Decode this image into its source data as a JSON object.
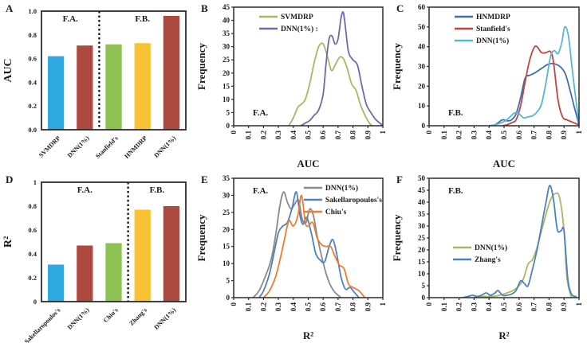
{
  "figure": {
    "background": "#ffffff",
    "frame_color": "#2b2b2b",
    "text_color": "#1a1a1a"
  },
  "chart_data": [
    {
      "panel": "A",
      "type": "bar",
      "ylabel": "AUC",
      "ylim": [
        0,
        1.0
      ],
      "yticks": [
        0,
        0.2,
        0.4,
        0.6,
        0.8,
        1.0
      ],
      "ytick_labels": [
        "0.0",
        "0.2",
        "0.4",
        "0.6",
        "0.8",
        "1.0"
      ],
      "categories": [
        "SVMDRP",
        "DNN(1%)",
        "Stanfield's",
        "HNMDRP",
        "DNN(1%)"
      ],
      "values": [
        0.62,
        0.71,
        0.72,
        0.73,
        0.96
      ],
      "bar_colors": [
        "#2ea9e1",
        "#ad4a40",
        "#8dc152",
        "#f9c233",
        "#ad4a40"
      ],
      "divider_after": 2,
      "group_labels": [
        "F.A.",
        "F.B."
      ]
    },
    {
      "panel": "B",
      "type": "line",
      "xlabel": "AUC",
      "ylabel": "Frequency",
      "xlim": [
        0,
        1
      ],
      "ylim": [
        0,
        45
      ],
      "yticks": [
        0,
        5,
        10,
        15,
        20,
        25,
        30,
        35,
        40,
        45
      ],
      "xticks": [
        0,
        0.1,
        0.2,
        0.3,
        0.4,
        0.5,
        0.6,
        0.7,
        0.8,
        0.9,
        1
      ],
      "xtick_labels": [
        "0",
        "0.1",
        "0.2",
        "0.3",
        "0.4",
        "0.5",
        "0.6",
        "0.7",
        "0.8",
        "0.9",
        "1"
      ],
      "annotation": {
        "text": "F.A.",
        "position": "bottom-left"
      },
      "legend": {
        "position": "top-left"
      },
      "series": [
        {
          "name": "SVMDRP",
          "color": "#a9b662",
          "x": [
            0.37,
            0.4,
            0.43,
            0.45,
            0.48,
            0.51,
            0.54,
            0.57,
            0.6,
            0.63,
            0.655,
            0.68,
            0.71,
            0.735,
            0.76,
            0.79,
            0.82,
            0.85,
            0.88,
            0.91,
            0.93
          ],
          "y": [
            0,
            3,
            7,
            8,
            10,
            16,
            24,
            30,
            31,
            26,
            21,
            23,
            26,
            25.5,
            22,
            16,
            13.5,
            8,
            4,
            1,
            0
          ]
        },
        {
          "name": "DNN(1%)",
          "legend_label": "DNN(1%) :",
          "color": "#6e69a9",
          "x": [
            0.45,
            0.48,
            0.51,
            0.54,
            0.57,
            0.6,
            0.62,
            0.64,
            0.66,
            0.68,
            0.7,
            0.72,
            0.735,
            0.75,
            0.77,
            0.8,
            0.83,
            0.86,
            0.89,
            0.92,
            0.95,
            0.98,
            1.0
          ],
          "y": [
            0,
            1,
            2,
            4,
            6,
            12,
            24,
            33,
            34,
            31,
            33,
            41,
            43,
            37,
            28,
            25,
            23,
            15,
            8,
            5,
            2.5,
            1,
            0
          ]
        }
      ]
    },
    {
      "panel": "C",
      "type": "line",
      "xlabel": "AUC",
      "ylabel": "Frequency",
      "xlim": [
        0,
        1
      ],
      "ylim": [
        0,
        60
      ],
      "yticks": [
        0,
        10,
        20,
        30,
        40,
        50,
        60
      ],
      "xticks": [
        0,
        0.1,
        0.2,
        0.3,
        0.4,
        0.5,
        0.6,
        0.7,
        0.8,
        0.9,
        1
      ],
      "xtick_labels": [
        "0",
        "0.1",
        "0.2",
        "0.3",
        "0.4",
        "0.5",
        "0.6",
        "0.7",
        "0.8",
        "0.9",
        "1"
      ],
      "annotation": {
        "text": "F.B.",
        "position": "bottom-left"
      },
      "legend": {
        "position": "top-left"
      },
      "series": [
        {
          "name": "HNMDRP",
          "color": "#3e6db0",
          "x": [
            0.43,
            0.46,
            0.49,
            0.52,
            0.55,
            0.58,
            0.61,
            0.64,
            0.67,
            0.7,
            0.73,
            0.76,
            0.79,
            0.82,
            0.85,
            0.88,
            0.91,
            0.94,
            0.97,
            1.0
          ],
          "y": [
            0,
            1.5,
            3,
            2.5,
            3,
            6,
            14,
            24,
            25.5,
            26.5,
            28,
            29.5,
            31,
            31.5,
            31,
            29.5,
            26,
            18,
            9,
            0.5
          ]
        },
        {
          "name": "Stanfield's",
          "color": "#c0443f",
          "x": [
            0.49,
            0.52,
            0.55,
            0.58,
            0.61,
            0.64,
            0.67,
            0.7,
            0.72,
            0.75,
            0.78,
            0.81,
            0.83,
            0.86,
            0.89,
            0.92,
            0.95,
            1.0
          ],
          "y": [
            0,
            0.5,
            1.5,
            3,
            10,
            22,
            33,
            39.5,
            40,
            37,
            37,
            37.5,
            32,
            13,
            4.5,
            3,
            2,
            0.5
          ]
        },
        {
          "name": "DNN(1%)",
          "color": "#58b5d8",
          "x": [
            0.4,
            0.44,
            0.48,
            0.51,
            0.54,
            0.57,
            0.6,
            0.63,
            0.66,
            0.69,
            0.72,
            0.75,
            0.78,
            0.81,
            0.835,
            0.86,
            0.885,
            0.905,
            0.93,
            0.96,
            1.0
          ],
          "y": [
            0,
            0.5,
            1.5,
            2.5,
            4.5,
            6.5,
            6,
            4,
            4.5,
            5,
            7,
            11,
            22,
            35,
            38,
            36.5,
            42,
            50,
            45,
            25,
            1
          ]
        }
      ]
    },
    {
      "panel": "D",
      "type": "bar",
      "ylabel": "R²",
      "ylim": [
        0,
        1.0
      ],
      "yticks": [
        0,
        0.2,
        0.4,
        0.6,
        0.8,
        1.0
      ],
      "ytick_labels": [
        "0",
        "0.2",
        "0.4",
        "0.6",
        "0.8",
        "1"
      ],
      "categories": [
        "Sakellaropoulos's",
        "DNN(1%)",
        "Chiu's",
        "Zhang's",
        "DNN(1%)"
      ],
      "values": [
        0.31,
        0.47,
        0.49,
        0.77,
        0.8
      ],
      "bar_colors": [
        "#2ea9e1",
        "#ad4a40",
        "#8dc152",
        "#f9c233",
        "#ad4a40"
      ],
      "divider_after": 3,
      "group_labels": [
        "F.A.",
        "F.B."
      ]
    },
    {
      "panel": "E",
      "type": "line",
      "xlabel": "R²",
      "ylabel": "Frequency",
      "xlim": [
        0,
        1
      ],
      "ylim": [
        0,
        35
      ],
      "yticks": [
        0,
        5,
        10,
        15,
        20,
        25,
        30,
        35
      ],
      "xticks": [
        0,
        0.1,
        0.2,
        0.3,
        0.4,
        0.5,
        0.6,
        0.7,
        0.8,
        0.9,
        1
      ],
      "xtick_labels": [
        "0",
        "0.1",
        "0.2",
        "0.3",
        "0.4",
        "0.5",
        "0.6",
        "0.7",
        "0.8",
        "0.9",
        "1"
      ],
      "annotation": {
        "text": "F.A.",
        "position": "top-left"
      },
      "legend": {
        "position": "top-right"
      },
      "series": [
        {
          "name": "DNN(1%)",
          "color": "#8a8a8a",
          "x": [
            0.13,
            0.17,
            0.21,
            0.25,
            0.28,
            0.31,
            0.335,
            0.36,
            0.385,
            0.41,
            0.435,
            0.46,
            0.485,
            0.51,
            0.535,
            0.56,
            0.59,
            0.62,
            0.65,
            0.68,
            0.72
          ],
          "y": [
            0,
            2,
            6,
            11,
            18,
            27,
            31,
            28,
            26,
            27.5,
            28.5,
            23,
            22,
            26,
            24,
            18,
            12,
            7,
            3.5,
            1.5,
            0
          ]
        },
        {
          "name": "Sakellaropoulos's",
          "color": "#4e81bd",
          "x": [
            0.17,
            0.2,
            0.24,
            0.27,
            0.3,
            0.33,
            0.36,
            0.39,
            0.42,
            0.445,
            0.465,
            0.49,
            0.52,
            0.55,
            0.58,
            0.61,
            0.64,
            0.665,
            0.69,
            0.72,
            0.75,
            0.78,
            0.81,
            0.84
          ],
          "y": [
            0,
            2,
            7,
            13,
            19,
            21,
            22,
            26,
            31,
            24,
            21.5,
            23.5,
            19,
            13,
            11,
            10.5,
            15,
            17,
            13,
            6,
            2.5,
            3,
            1.5,
            0
          ]
        },
        {
          "name": "Chiu's",
          "color": "#ed7d31",
          "x": [
            0.2,
            0.24,
            0.28,
            0.31,
            0.34,
            0.37,
            0.4,
            0.43,
            0.455,
            0.48,
            0.5,
            0.53,
            0.56,
            0.59,
            0.62,
            0.65,
            0.68,
            0.71,
            0.74,
            0.77,
            0.8,
            0.84,
            0.88
          ],
          "y": [
            0,
            2,
            6,
            11,
            17,
            22.5,
            21,
            24,
            30,
            22,
            21,
            22,
            17.5,
            15.5,
            15,
            15,
            12,
            9.5,
            8.5,
            4,
            3,
            2,
            0
          ]
        }
      ]
    },
    {
      "panel": "F",
      "type": "line",
      "xlabel": "R²",
      "ylabel": "Frequency",
      "xlim": [
        0,
        1
      ],
      "ylim": [
        0,
        50
      ],
      "yticks": [
        0,
        5,
        10,
        15,
        20,
        25,
        30,
        35,
        40,
        45,
        50
      ],
      "xticks": [
        0,
        0.1,
        0.2,
        0.3,
        0.4,
        0.5,
        0.6,
        0.7,
        0.8,
        0.9,
        1
      ],
      "xtick_labels": [
        "0",
        "0.1",
        "0.2",
        "0.3",
        "0.4",
        "0.5",
        "0.6",
        "0.7",
        "0.8",
        "0.9",
        "1"
      ],
      "annotation": {
        "text": "F.B.",
        "position": "top-left"
      },
      "legend": {
        "position": "mid-left"
      },
      "series": [
        {
          "name": "DNN(1%)",
          "color": "#a9b662",
          "x": [
            0.3,
            0.36,
            0.42,
            0.47,
            0.52,
            0.56,
            0.6,
            0.63,
            0.66,
            0.69,
            0.72,
            0.75,
            0.78,
            0.81,
            0.84,
            0.87,
            0.9,
            0.92,
            0.95
          ],
          "y": [
            0,
            0.5,
            0.5,
            1,
            2,
            3,
            5,
            8,
            14,
            16,
            21,
            28,
            35,
            41,
            43.5,
            42,
            28,
            8,
            0
          ]
        },
        {
          "name": "Zhang's",
          "color": "#4e81bd",
          "x": [
            0.22,
            0.26,
            0.29,
            0.32,
            0.35,
            0.38,
            0.41,
            0.44,
            0.46,
            0.49,
            0.52,
            0.55,
            0.58,
            0.61,
            0.635,
            0.66,
            0.69,
            0.72,
            0.75,
            0.78,
            0.805,
            0.83,
            0.855,
            0.88,
            0.9,
            0.925,
            0.95,
            0.98
          ],
          "y": [
            0,
            0.5,
            1,
            0.5,
            1,
            2,
            1,
            2,
            3,
            1,
            1,
            1.5,
            3,
            7,
            6,
            5,
            12,
            20,
            30,
            40,
            47,
            41,
            28.5,
            28,
            28,
            8,
            1.5,
            0.5
          ]
        }
      ]
    }
  ]
}
